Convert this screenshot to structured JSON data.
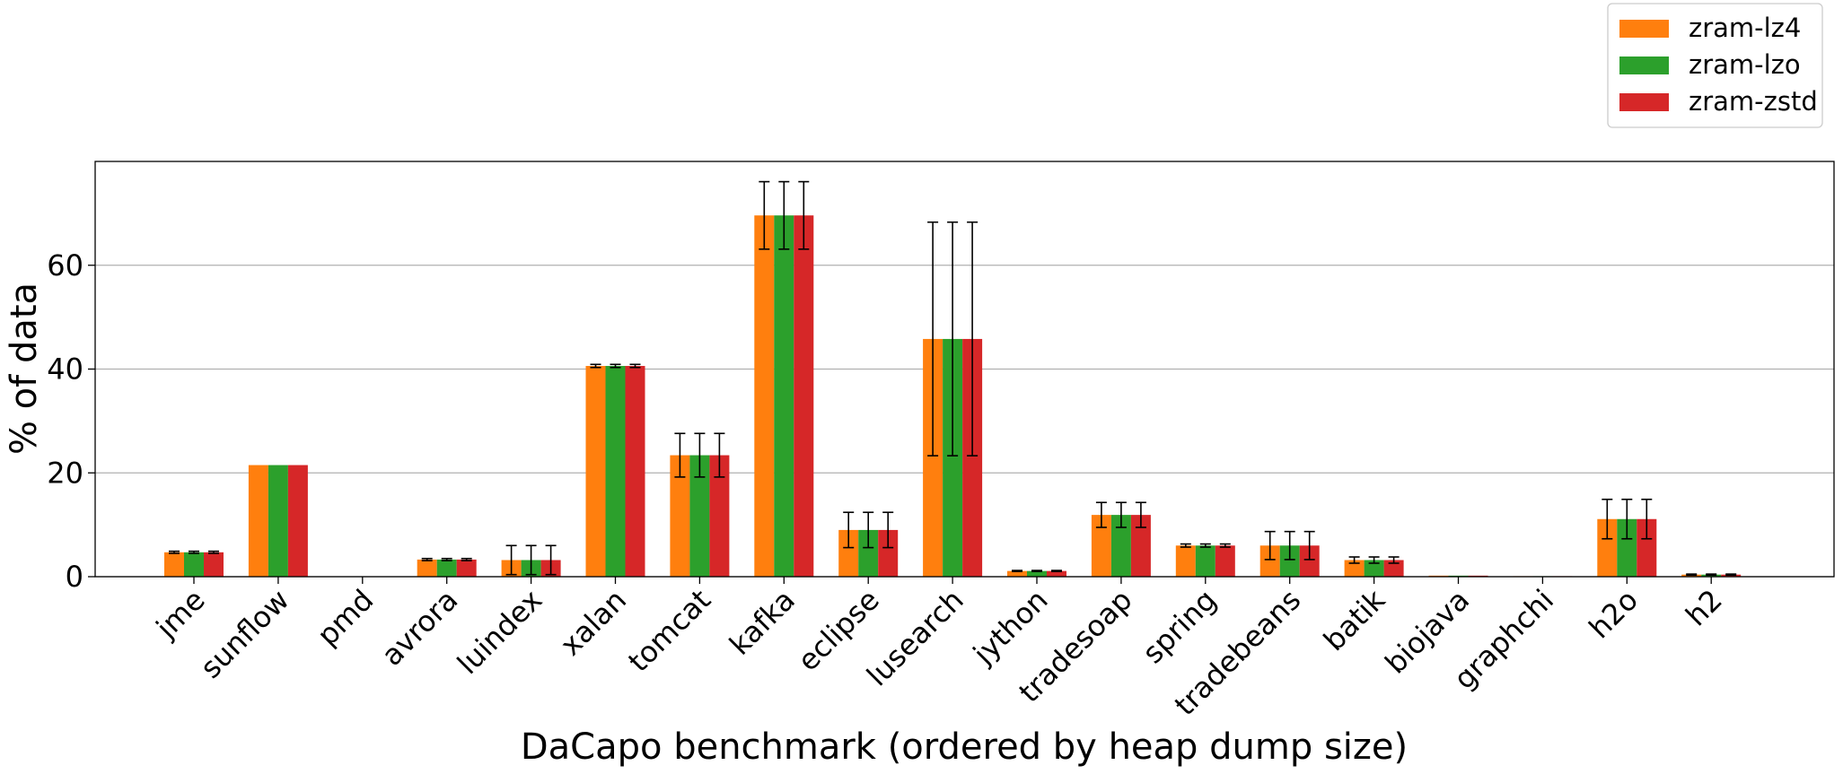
{
  "chart_data": {
    "type": "bar",
    "xlabel": "DaCapo benchmark (ordered by heap dump size)",
    "ylabel": "% of data",
    "ylim": [
      0,
      80
    ],
    "yticks": [
      0,
      20,
      40,
      60
    ],
    "grid": "horizontal",
    "legend_position": "top-right, above plot",
    "categories": [
      "jme",
      "sunflow",
      "pmd",
      "avrora",
      "luindex",
      "xalan",
      "tomcat",
      "kafka",
      "eclipse",
      "lusearch",
      "jython",
      "tradesoap",
      "spring",
      "tradebeans",
      "batik",
      "biojava",
      "graphchi",
      "h2o",
      "h2"
    ],
    "series": [
      {
        "name": "zram-lz4",
        "color": "#ff7f0e",
        "values": [
          4.7,
          21.5,
          0,
          3.3,
          3.2,
          40.6,
          23.4,
          69.6,
          9.0,
          45.8,
          1.1,
          11.9,
          6.0,
          6.0,
          3.2,
          0.2,
          0.1,
          11.1,
          0.4
        ],
        "errors": [
          0.2,
          0,
          0,
          0.2,
          2.8,
          0.3,
          4.2,
          6.5,
          3.4,
          22.5,
          0.1,
          2.4,
          0.3,
          2.7,
          0.6,
          0,
          0,
          3.8,
          0.1
        ]
      },
      {
        "name": "zram-lzo",
        "color": "#2ca02c",
        "values": [
          4.7,
          21.5,
          0,
          3.3,
          3.2,
          40.6,
          23.4,
          69.6,
          9.0,
          45.8,
          1.1,
          11.9,
          6.0,
          6.0,
          3.2,
          0.2,
          0.1,
          11.1,
          0.4
        ],
        "errors": [
          0.2,
          0,
          0,
          0.2,
          2.8,
          0.3,
          4.2,
          6.5,
          3.4,
          22.5,
          0.1,
          2.4,
          0.3,
          2.7,
          0.6,
          0,
          0,
          3.8,
          0.1
        ]
      },
      {
        "name": "zram-zstd",
        "color": "#d62728",
        "values": [
          4.7,
          21.5,
          0,
          3.3,
          3.2,
          40.6,
          23.4,
          69.6,
          9.0,
          45.8,
          1.1,
          11.9,
          6.0,
          6.0,
          3.2,
          0.2,
          0.1,
          11.1,
          0.4
        ],
        "errors": [
          0.2,
          0,
          0,
          0.2,
          2.8,
          0.3,
          4.2,
          6.5,
          3.4,
          22.5,
          0.1,
          2.4,
          0.3,
          2.7,
          0.6,
          0,
          0,
          3.8,
          0.1
        ]
      }
    ]
  }
}
